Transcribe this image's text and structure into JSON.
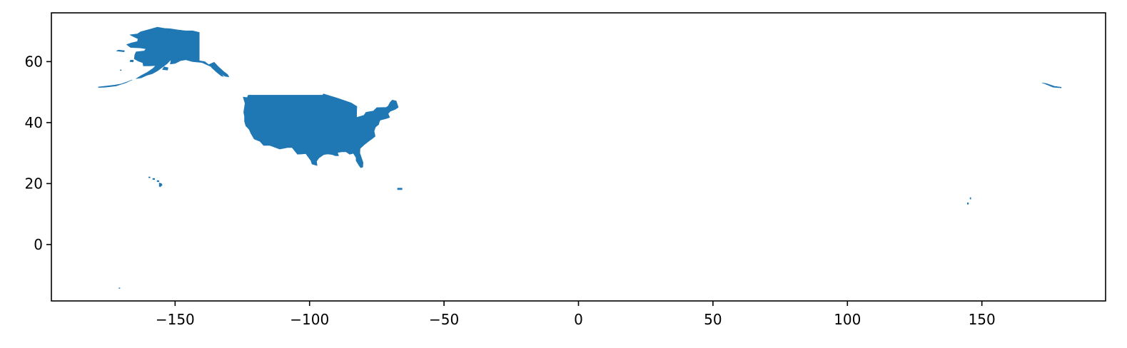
{
  "map": {
    "fill_color": "#1f77b4",
    "frame_color": "#000000",
    "background": "#ffffff",
    "xlim": [
      -196,
      196
    ],
    "ylim": [
      -18.5,
      76
    ],
    "x_ticks": [
      {
        "value": -150,
        "label": "−150"
      },
      {
        "value": -100,
        "label": "−100"
      },
      {
        "value": -50,
        "label": "−50"
      },
      {
        "value": 0,
        "label": "0"
      },
      {
        "value": 50,
        "label": "50"
      },
      {
        "value": 100,
        "label": "100"
      },
      {
        "value": 150,
        "label": "150"
      }
    ],
    "y_ticks": [
      {
        "value": 0,
        "label": "0"
      },
      {
        "value": 20,
        "label": "20"
      },
      {
        "value": 40,
        "label": "40"
      },
      {
        "value": 60,
        "label": "60"
      }
    ],
    "regions": [
      {
        "name": "contiguous-us",
        "coords": [
          [
            -124.7,
            48.4
          ],
          [
            -123.2,
            48.2
          ],
          [
            -122.8,
            49.0
          ],
          [
            -95.2,
            49.0
          ],
          [
            -94.8,
            49.4
          ],
          [
            -89.6,
            48.0
          ],
          [
            -84.6,
            46.5
          ],
          [
            -82.4,
            45.3
          ],
          [
            -82.5,
            43.0
          ],
          [
            -82.5,
            41.7
          ],
          [
            -79.8,
            42.4
          ],
          [
            -79.0,
            43.4
          ],
          [
            -76.3,
            43.8
          ],
          [
            -75.0,
            44.9
          ],
          [
            -71.5,
            45.0
          ],
          [
            -70.8,
            45.4
          ],
          [
            -70.0,
            46.7
          ],
          [
            -69.2,
            47.4
          ],
          [
            -67.8,
            47.1
          ],
          [
            -67.0,
            45.0
          ],
          [
            -68.2,
            44.3
          ],
          [
            -70.0,
            43.7
          ],
          [
            -70.8,
            42.9
          ],
          [
            -70.2,
            41.7
          ],
          [
            -71.5,
            41.3
          ],
          [
            -73.7,
            40.8
          ],
          [
            -74.0,
            40.4
          ],
          [
            -74.3,
            39.4
          ],
          [
            -75.5,
            38.5
          ],
          [
            -76.0,
            37.2
          ],
          [
            -75.6,
            35.5
          ],
          [
            -76.7,
            34.7
          ],
          [
            -78.0,
            33.9
          ],
          [
            -79.3,
            33.0
          ],
          [
            -81.2,
            31.5
          ],
          [
            -81.3,
            30.0
          ],
          [
            -80.1,
            26.9
          ],
          [
            -80.2,
            25.4
          ],
          [
            -81.0,
            25.2
          ],
          [
            -81.8,
            26.2
          ],
          [
            -82.7,
            27.5
          ],
          [
            -82.7,
            28.5
          ],
          [
            -83.7,
            29.9
          ],
          [
            -85.1,
            29.6
          ],
          [
            -86.4,
            30.4
          ],
          [
            -88.0,
            30.4
          ],
          [
            -89.6,
            30.2
          ],
          [
            -89.2,
            29.1
          ],
          [
            -90.4,
            29.1
          ],
          [
            -91.5,
            29.5
          ],
          [
            -93.3,
            29.7
          ],
          [
            -94.7,
            29.5
          ],
          [
            -96.5,
            28.4
          ],
          [
            -97.4,
            27.3
          ],
          [
            -97.2,
            25.9
          ],
          [
            -99.1,
            26.4
          ],
          [
            -99.5,
            27.5
          ],
          [
            -101.4,
            29.8
          ],
          [
            -102.7,
            29.7
          ],
          [
            -104.5,
            29.6
          ],
          [
            -106.5,
            31.8
          ],
          [
            -108.2,
            31.8
          ],
          [
            -111.1,
            31.3
          ],
          [
            -114.8,
            32.5
          ],
          [
            -117.1,
            32.5
          ],
          [
            -118.4,
            33.8
          ],
          [
            -120.6,
            34.6
          ],
          [
            -121.9,
            36.6
          ],
          [
            -122.5,
            37.8
          ],
          [
            -123.7,
            38.9
          ],
          [
            -124.2,
            40.4
          ],
          [
            -124.2,
            42.0
          ],
          [
            -124.5,
            43.4
          ],
          [
            -124.0,
            46.3
          ],
          [
            -124.7,
            48.4
          ]
        ]
      },
      {
        "name": "alaska",
        "coords": [
          [
            -141.0,
            69.6
          ],
          [
            -141.0,
            60.3
          ],
          [
            -139.0,
            60.0
          ],
          [
            -137.5,
            59.0
          ],
          [
            -135.5,
            59.8
          ],
          [
            -134.0,
            58.4
          ],
          [
            -132.0,
            56.8
          ],
          [
            -130.5,
            55.8
          ],
          [
            -130.0,
            55.0
          ],
          [
            -131.5,
            55.2
          ],
          [
            -133.5,
            56.5
          ],
          [
            -135.5,
            57.8
          ],
          [
            -137.0,
            58.5
          ],
          [
            -140.0,
            59.7
          ],
          [
            -143.5,
            60.0
          ],
          [
            -146.0,
            60.6
          ],
          [
            -148.0,
            60.3
          ],
          [
            -150.0,
            59.4
          ],
          [
            -151.8,
            59.2
          ],
          [
            -151.5,
            60.7
          ],
          [
            -153.0,
            59.3
          ],
          [
            -154.5,
            58.3
          ],
          [
            -156.5,
            57.0
          ],
          [
            -158.5,
            56.0
          ],
          [
            -160.5,
            55.5
          ],
          [
            -162.5,
            54.7
          ],
          [
            -164.5,
            54.4
          ],
          [
            -162.5,
            55.5
          ],
          [
            -160.5,
            56.4
          ],
          [
            -158.2,
            57.8
          ],
          [
            -157.2,
            58.7
          ],
          [
            -159.5,
            58.6
          ],
          [
            -161.8,
            58.6
          ],
          [
            -162.0,
            59.6
          ],
          [
            -163.8,
            60.2
          ],
          [
            -165.2,
            60.9
          ],
          [
            -165.0,
            62.2
          ],
          [
            -164.5,
            63.2
          ],
          [
            -161.5,
            63.5
          ],
          [
            -160.8,
            64.2
          ],
          [
            -163.0,
            64.5
          ],
          [
            -166.5,
            64.6
          ],
          [
            -168.0,
            65.6
          ],
          [
            -166.0,
            66.2
          ],
          [
            -164.0,
            66.6
          ],
          [
            -163.8,
            67.5
          ],
          [
            -165.5,
            68.2
          ],
          [
            -166.8,
            68.8
          ],
          [
            -164.0,
            69.1
          ],
          [
            -162.8,
            69.8
          ],
          [
            -159.0,
            70.7
          ],
          [
            -156.6,
            71.3
          ],
          [
            -154.0,
            70.9
          ],
          [
            -152.0,
            70.8
          ],
          [
            -149.0,
            70.4
          ],
          [
            -146.0,
            70.1
          ],
          [
            -143.5,
            70.1
          ],
          [
            -141.0,
            69.6
          ]
        ]
      },
      {
        "name": "alaska-panhandle-islands",
        "coords": [
          [
            -136.5,
            58.1
          ],
          [
            -134.5,
            56.5
          ],
          [
            -132.8,
            55.3
          ],
          [
            -132.0,
            55.1
          ],
          [
            -133.6,
            56.8
          ],
          [
            -135.6,
            57.9
          ],
          [
            -136.5,
            58.1
          ]
        ]
      },
      {
        "name": "kodiak",
        "coords": [
          [
            -154.7,
            57.4
          ],
          [
            -152.8,
            57.2
          ],
          [
            -152.6,
            58.0
          ],
          [
            -154.1,
            58.3
          ],
          [
            -154.7,
            57.4
          ]
        ]
      },
      {
        "name": "nunivak",
        "coords": [
          [
            -166.8,
            60.0
          ],
          [
            -165.6,
            59.9
          ],
          [
            -165.5,
            60.5
          ],
          [
            -166.6,
            60.5
          ],
          [
            -166.8,
            60.0
          ]
        ]
      },
      {
        "name": "st-lawrence",
        "coords": [
          [
            -171.8,
            63.5
          ],
          [
            -169.0,
            63.2
          ],
          [
            -168.8,
            63.6
          ],
          [
            -171.0,
            63.8
          ],
          [
            -171.8,
            63.5
          ]
        ]
      },
      {
        "name": "pribilof",
        "coords": [
          [
            -170.4,
            57.1
          ],
          [
            -170.0,
            57.1
          ],
          [
            -170.0,
            57.3
          ],
          [
            -170.4,
            57.3
          ],
          [
            -170.4,
            57.1
          ]
        ]
      },
      {
        "name": "aleutians-east",
        "coords": [
          [
            -166.5,
            53.8
          ],
          [
            -166.0,
            54.0
          ],
          [
            -168.0,
            53.3
          ],
          [
            -170.0,
            52.7
          ],
          [
            -172.5,
            52.3
          ],
          [
            -176.5,
            51.9
          ],
          [
            -178.5,
            51.7
          ],
          [
            -178.5,
            51.5
          ],
          [
            -176.0,
            51.6
          ],
          [
            -172.0,
            52.0
          ],
          [
            -168.5,
            53.0
          ],
          [
            -166.5,
            53.8
          ]
        ]
      },
      {
        "name": "aleutians-west",
        "coords": [
          [
            172.5,
            53.0
          ],
          [
            174.0,
            52.8
          ],
          [
            177.0,
            51.9
          ],
          [
            179.5,
            51.6
          ],
          [
            179.5,
            51.4
          ],
          [
            176.5,
            51.6
          ],
          [
            173.5,
            52.7
          ],
          [
            172.5,
            53.0
          ]
        ]
      },
      {
        "name": "hawaii",
        "coords": [
          [
            -155.9,
            19.1
          ],
          [
            -155.9,
            20.2
          ],
          [
            -155.1,
            20.0
          ],
          [
            -154.8,
            19.5
          ],
          [
            -155.6,
            18.9
          ],
          [
            -155.9,
            19.1
          ]
        ]
      },
      {
        "name": "maui",
        "coords": [
          [
            -156.7,
            20.6
          ],
          [
            -156.0,
            20.6
          ],
          [
            -156.0,
            21.0
          ],
          [
            -156.7,
            21.0
          ],
          [
            -156.7,
            20.6
          ]
        ]
      },
      {
        "name": "oahu",
        "coords": [
          [
            -158.3,
            21.3
          ],
          [
            -157.6,
            21.3
          ],
          [
            -157.6,
            21.7
          ],
          [
            -158.3,
            21.7
          ],
          [
            -158.3,
            21.3
          ]
        ]
      },
      {
        "name": "kauai",
        "coords": [
          [
            -159.8,
            21.9
          ],
          [
            -159.3,
            21.9
          ],
          [
            -159.3,
            22.2
          ],
          [
            -159.8,
            22.2
          ],
          [
            -159.8,
            21.9
          ]
        ]
      },
      {
        "name": "puerto-rico",
        "coords": [
          [
            -67.3,
            18.0
          ],
          [
            -65.6,
            18.0
          ],
          [
            -65.6,
            18.5
          ],
          [
            -67.3,
            18.5
          ],
          [
            -67.3,
            18.0
          ]
        ]
      },
      {
        "name": "guam",
        "coords": [
          [
            144.6,
            13.2
          ],
          [
            145.0,
            13.2
          ],
          [
            145.0,
            13.7
          ],
          [
            144.6,
            13.7
          ],
          [
            144.6,
            13.2
          ]
        ]
      },
      {
        "name": "northern-marianas",
        "coords": [
          [
            145.6,
            14.9
          ],
          [
            145.9,
            14.9
          ],
          [
            145.9,
            15.4
          ],
          [
            145.6,
            15.4
          ],
          [
            145.6,
            14.9
          ]
        ]
      },
      {
        "name": "american-samoa",
        "coords": [
          [
            -170.9,
            -14.4
          ],
          [
            -170.5,
            -14.4
          ],
          [
            -170.5,
            -14.2
          ],
          [
            -170.9,
            -14.2
          ],
          [
            -170.9,
            -14.4
          ]
        ]
      }
    ]
  }
}
